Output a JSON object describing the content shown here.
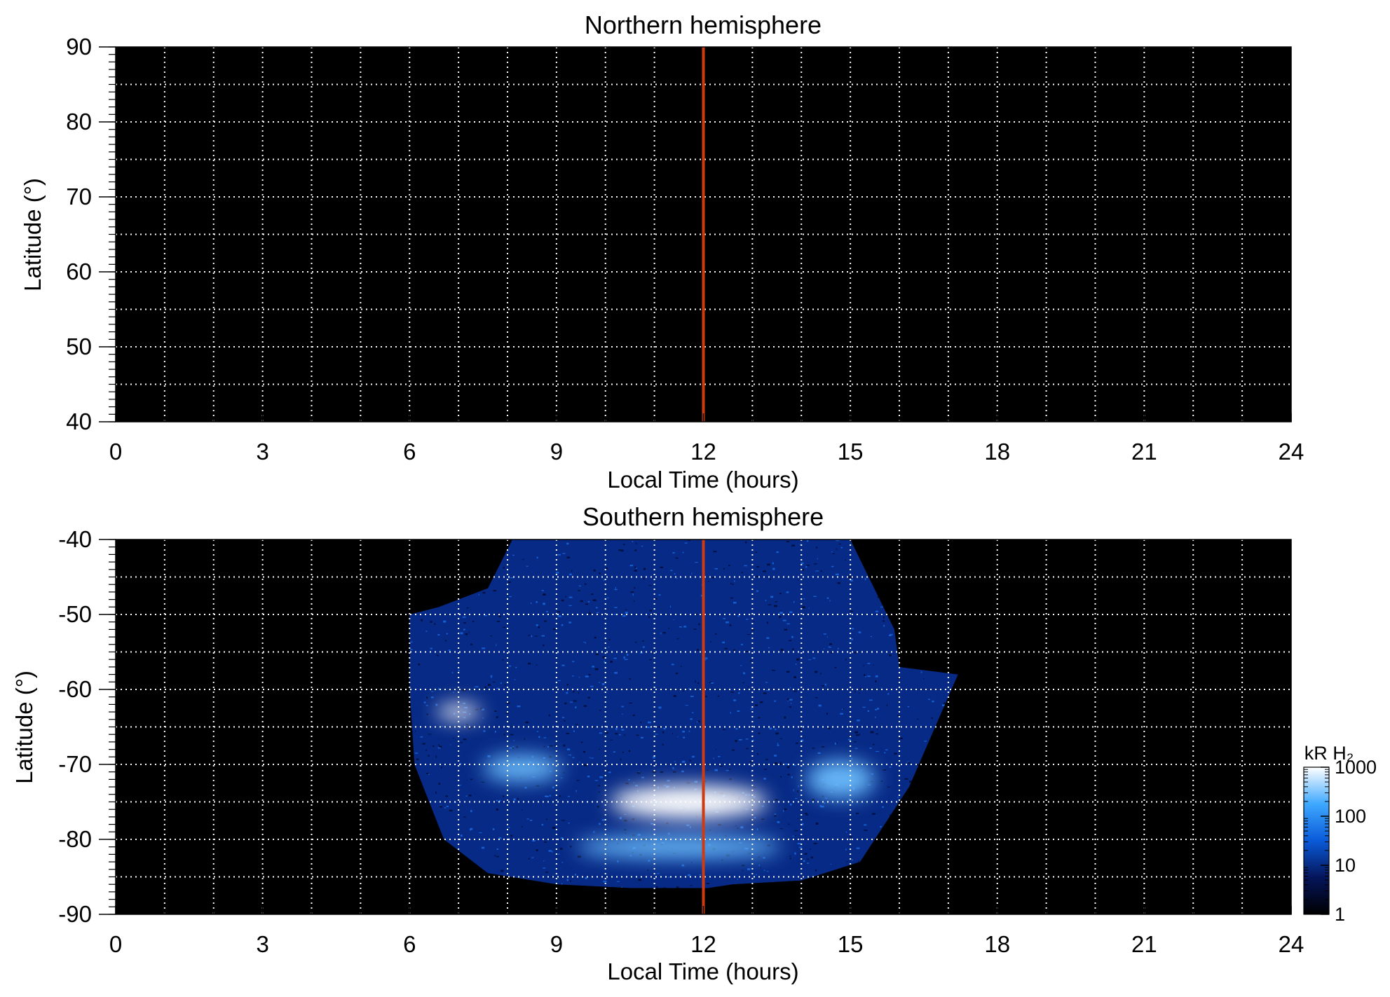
{
  "chart_data": [
    {
      "type": "heatmap",
      "title": "Northern hemisphere",
      "xlabel": "Local Time (hours)",
      "ylabel": "Latitude (°)",
      "xlim": [
        0,
        24
      ],
      "ylim": [
        40,
        90
      ],
      "x_ticks": [
        "0",
        "3",
        "6",
        "9",
        "12",
        "15",
        "18",
        "21",
        "24"
      ],
      "y_ticks": [
        "40",
        "50",
        "60",
        "70",
        "80",
        "90"
      ],
      "grid": true,
      "marker_line": {
        "x": 12,
        "color": "#d03a10"
      },
      "emission": []
    },
    {
      "type": "heatmap",
      "title": "Southern hemisphere",
      "xlabel": "Local Time (hours)",
      "ylabel": "Latitude (°)",
      "xlim": [
        0,
        24
      ],
      "ylim": [
        -90,
        -40
      ],
      "x_ticks": [
        "0",
        "3",
        "6",
        "9",
        "12",
        "15",
        "18",
        "21",
        "24"
      ],
      "y_ticks": [
        "-40",
        "-50",
        "-60",
        "-70",
        "-80",
        "-90"
      ],
      "grid": true,
      "marker_line": {
        "x": 12,
        "color": "#d03a10"
      },
      "coverage_outline": [
        [
          6.0,
          -50.0
        ],
        [
          6.6,
          -49.0
        ],
        [
          7.6,
          -46.5
        ],
        [
          8.1,
          -40.0
        ],
        [
          15.0,
          -40.0
        ],
        [
          15.9,
          -52.0
        ],
        [
          16.0,
          -57.0
        ],
        [
          17.2,
          -58.0
        ],
        [
          16.2,
          -73.0
        ],
        [
          15.2,
          -83.0
        ],
        [
          14.0,
          -85.5
        ],
        [
          12.6,
          -86.0
        ],
        [
          12.1,
          -86.5
        ],
        [
          10.5,
          -86.5
        ],
        [
          9.0,
          -86.0
        ],
        [
          7.6,
          -84.5
        ],
        [
          6.7,
          -80.0
        ],
        [
          6.1,
          -70.0
        ],
        [
          6.0,
          -60.0
        ]
      ],
      "emission": [
        {
          "feature": "main auroral oval (brightest)",
          "lt": 11.7,
          "lat": -75.5,
          "dlt": 1.9,
          "dlat": 2.6,
          "kR": 1000
        },
        {
          "feature": "main auroral oval",
          "lt": 11.7,
          "lat": -75.0,
          "dlt": 3.2,
          "dlat": 4.5,
          "kR": 400
        },
        {
          "feature": "oval, dawn sector",
          "lt": 8.3,
          "lat": -70.5,
          "dlt": 1.6,
          "dlat": 3.5,
          "kR": 300
        },
        {
          "feature": "bright arc, dawn",
          "lt": 7.0,
          "lat": -63.0,
          "dlt": 0.9,
          "dlat": 2.0,
          "kR": 700
        },
        {
          "feature": "equatorward band",
          "lt": 11.5,
          "lat": -81.0,
          "dlt": 4.2,
          "dlat": 3.0,
          "kR": 150
        },
        {
          "feature": "dusk sector",
          "lt": 14.8,
          "lat": -72.0,
          "dlt": 1.4,
          "dlat": 5.0,
          "kR": 80
        }
      ],
      "colorbar": {
        "label": "kR H₂",
        "scale": "log",
        "range": [
          1,
          1000
        ],
        "ticks": [
          "1000",
          "100",
          "10",
          "1"
        ],
        "colors": [
          "#000000",
          "#05155a",
          "#0a5ad8",
          "#3ea8ff",
          "#ffffff"
        ]
      }
    }
  ]
}
